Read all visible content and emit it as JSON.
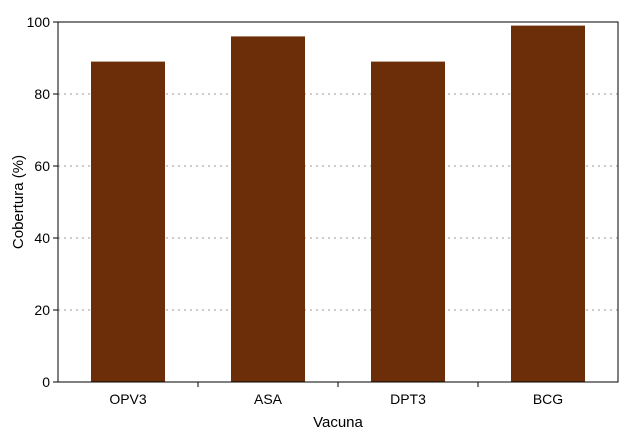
{
  "chart_data": {
    "type": "bar",
    "categories": [
      "OPV3",
      "ASA",
      "DPT3",
      "BCG"
    ],
    "values": [
      89,
      96,
      89,
      99
    ],
    "xlabel": "Vacuna",
    "ylabel": "Cobertura (%)",
    "ylim": [
      0,
      100
    ],
    "yticks": [
      0,
      20,
      40,
      60,
      80,
      100
    ],
    "grid": true,
    "grid_style": "dotted",
    "bar_color": "#6b2e09",
    "legend": "none"
  }
}
